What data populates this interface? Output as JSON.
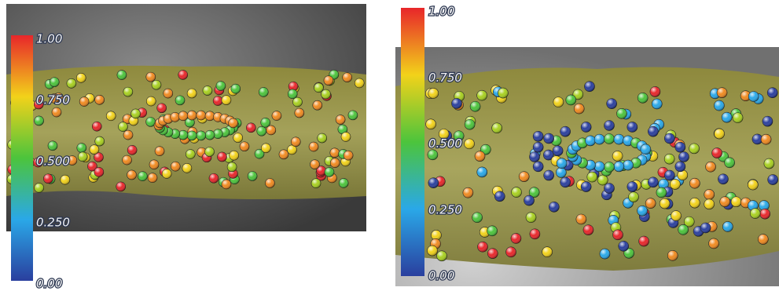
{
  "panels": [
    {
      "colorbar": {
        "labels": [
          "1.00",
          "0.750",
          "0.500",
          "0.250",
          "0.00"
        ]
      }
    },
    {
      "colorbar": {
        "labels": [
          "1.00",
          "0.750",
          "0.500",
          "0.250",
          "0.00"
        ]
      }
    }
  ]
}
